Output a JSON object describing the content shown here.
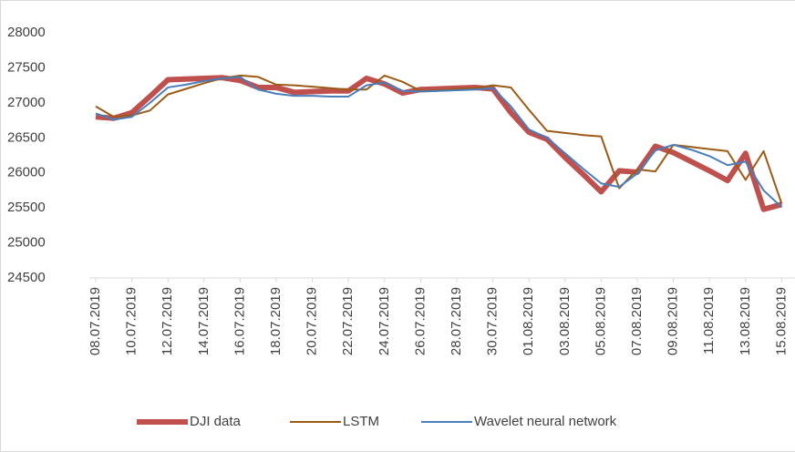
{
  "chart_data": {
    "type": "line",
    "categories": [
      "08.07.2019",
      null,
      "10.07.2019",
      null,
      "12.07.2019",
      null,
      "14.07.2019",
      null,
      "16.07.2019",
      null,
      "18.07.2019",
      null,
      "20.07.2019",
      null,
      "22.07.2019",
      null,
      "24.07.2019",
      null,
      "26.07.2019",
      null,
      "28.07.2019",
      null,
      "30.07.2019",
      null,
      "01.08.2019",
      null,
      "03.08.2019",
      null,
      "05.08.2019",
      null,
      "07.08.2019",
      null,
      "09.08.2019",
      null,
      "11.08.2019",
      null,
      "13.08.2019",
      null,
      "15.08.2019"
    ],
    "series": [
      {
        "name": "DJI data",
        "color": "#c0504d",
        "width": 6,
        "values": [
          26800,
          26780,
          26860,
          27090,
          27330,
          27340,
          27350,
          27360,
          27320,
          27220,
          27220,
          27150,
          27160,
          27170,
          27170,
          27350,
          27270,
          27140,
          27190,
          27200,
          27210,
          27220,
          27200,
          26860,
          26580,
          26480,
          26220,
          25980,
          25730,
          26030,
          26010,
          26380,
          26290,
          26160,
          26030,
          25890,
          26280,
          25480,
          25550
        ]
      },
      {
        "name": "LSTM",
        "color": "#9c5a14",
        "width": 2,
        "values": [
          26950,
          26800,
          26820,
          26890,
          27120,
          27200,
          27280,
          27350,
          27390,
          27370,
          27260,
          27250,
          27230,
          27210,
          27190,
          27190,
          27390,
          27300,
          27170,
          27180,
          27200,
          27210,
          27250,
          27220,
          26900,
          26600,
          26570,
          26540,
          26520,
          25780,
          26050,
          26020,
          26400,
          26370,
          26340,
          26310,
          25900,
          26310,
          25560
        ]
      },
      {
        "name": "Wavelet neural network",
        "color": "#4a7ebb",
        "width": 2,
        "values": [
          26850,
          26760,
          26800,
          27000,
          27220,
          27260,
          27310,
          27350,
          27370,
          27190,
          27130,
          27100,
          27100,
          27090,
          27090,
          27250,
          27290,
          27170,
          27160,
          27170,
          27180,
          27190,
          27210,
          26950,
          26620,
          26500,
          26280,
          26060,
          25850,
          25800,
          25990,
          26320,
          26400,
          26330,
          26240,
          26110,
          26160,
          25750,
          25510
        ]
      }
    ],
    "ylim": [
      24500,
      28000
    ],
    "yticks": [
      24500,
      25000,
      25500,
      26000,
      26500,
      27000,
      27500,
      28000
    ]
  }
}
